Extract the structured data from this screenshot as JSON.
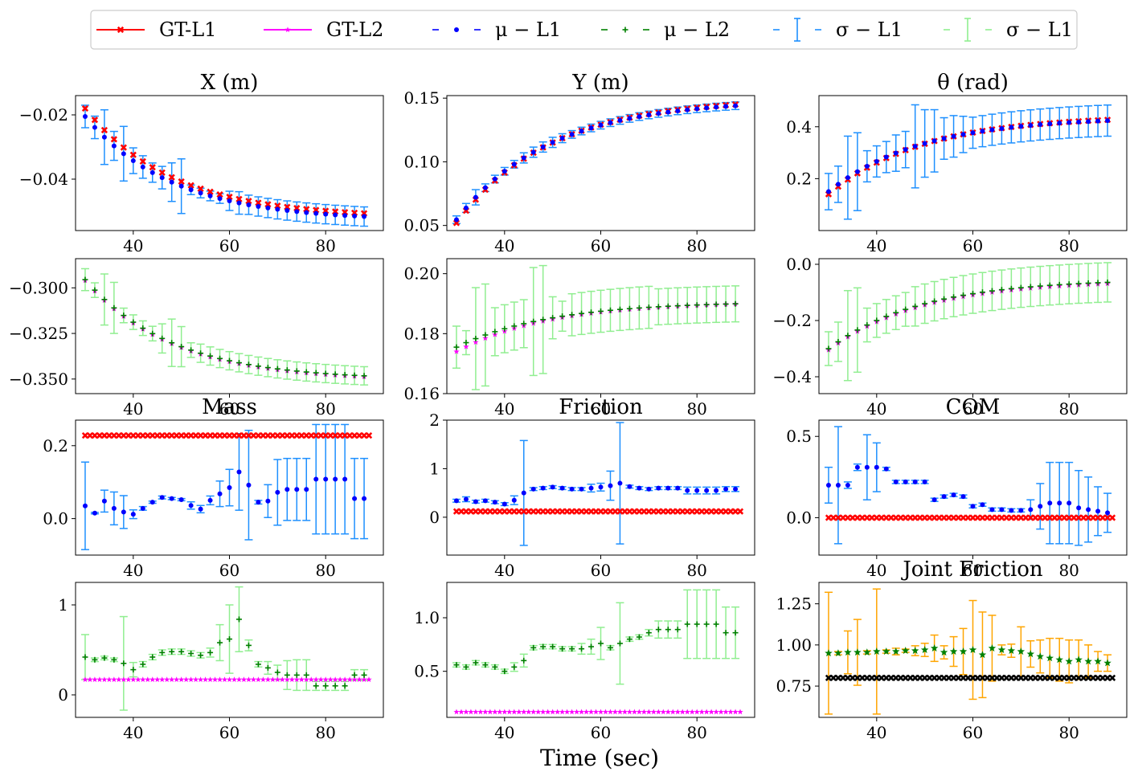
{
  "figure": {
    "xlabel": "Time (sec)"
  },
  "legend": [
    {
      "label": "GT-L1",
      "color": "#ff0000",
      "marker": "x",
      "line": "solid"
    },
    {
      "label": "GT-L2",
      "color": "#ff00ff",
      "marker": "star",
      "line": "solid"
    },
    {
      "label": "μ − L1",
      "color": "#0000ff",
      "marker": "dot",
      "line": "dashed"
    },
    {
      "label": "μ − L2",
      "color": "#008000",
      "marker": "plus",
      "line": "dashed"
    },
    {
      "label": "σ − L1",
      "color": "#1e90ff",
      "marker": "errbar",
      "line": "dashed"
    },
    {
      "label": "σ − L1",
      "color": "#90ee90",
      "marker": "errbar",
      "line": "dashed"
    }
  ],
  "colors": {
    "gt1": "#ff0000",
    "gt2": "#ff00ff",
    "mu1": "#0000ff",
    "mu2": "#008000",
    "sd1": "#1e90ff",
    "sd2": "#90ee90",
    "jf_err": "#ffa500",
    "jf_mu": "#008000",
    "jf_gt": "#000000"
  },
  "chart_data": [
    {
      "id": "x1",
      "type": "errorbar",
      "title": "X (m)",
      "xlim": [
        28,
        92
      ],
      "ylim": [
        -0.056,
        -0.014
      ],
      "xticks": [
        40,
        60,
        80
      ],
      "yticks": [
        -0.04,
        -0.02
      ],
      "ytick_labels": [
        "−0.04",
        "−0.02"
      ],
      "gt_kind": "gt1",
      "mu_kind": "mu1",
      "sd_kind": "sd1",
      "gt_start": -0.018,
      "gt_end": -0.0505,
      "gt_shape": "decay",
      "mu_start": -0.0205,
      "mu_end": -0.0515,
      "mu_shape": "decay",
      "sd": [
        0.0035,
        0.0035,
        0.0085,
        0.0045,
        0.0085,
        0.004,
        0.0035,
        0.003,
        0.0035,
        0.006,
        0.0085,
        0.0015,
        0.0015,
        0.0015,
        0.0015,
        0.003,
        0.0035,
        0.003,
        0.003,
        0.003,
        0.003,
        0.003,
        0.003,
        0.003,
        0.003,
        0.003,
        0.003,
        0.003,
        0.003,
        0.003
      ]
    },
    {
      "id": "y1",
      "type": "errorbar",
      "title": "Y (m)",
      "xlim": [
        28,
        92
      ],
      "ylim": [
        0.046,
        0.152
      ],
      "xticks": [
        40,
        60,
        80
      ],
      "yticks": [
        0.05,
        0.1,
        0.15
      ],
      "ytick_labels": [
        "0.05",
        "0.10",
        "0.15"
      ],
      "gt_kind": "gt1",
      "mu_kind": "mu1",
      "sd_kind": "sd1",
      "gt_start": 0.052,
      "gt_end": 0.1455,
      "gt_shape": "rise",
      "mu_start": 0.0545,
      "mu_end": 0.1445,
      "mu_shape": "rise",
      "sd": [
        0.003,
        0.0035,
        0.006,
        0.003,
        0.003,
        0.003,
        0.003,
        0.004,
        0.004,
        0.004,
        0.004,
        0.0035,
        0.003,
        0.003,
        0.003,
        0.003,
        0.003,
        0.003,
        0.003,
        0.003,
        0.003,
        0.003,
        0.003,
        0.003,
        0.003,
        0.003,
        0.003,
        0.003,
        0.003,
        0.003
      ]
    },
    {
      "id": "t1",
      "type": "errorbar",
      "title": "θ (rad)",
      "xlim": [
        28,
        92
      ],
      "ylim": [
        0.0,
        0.52
      ],
      "xticks": [
        40,
        60,
        80
      ],
      "yticks": [
        0.2,
        0.4
      ],
      "ytick_labels": [
        "0.2",
        "0.4"
      ],
      "gt_kind": "gt1",
      "mu_kind": "mu1",
      "sd_kind": "sd1",
      "gt_start": 0.14,
      "gt_end": 0.428,
      "gt_shape": "rise",
      "mu_start": 0.15,
      "mu_end": 0.425,
      "mu_shape": "rise",
      "sd": [
        0.07,
        0.07,
        0.16,
        0.15,
        0.06,
        0.06,
        0.06,
        0.07,
        0.07,
        0.16,
        0.13,
        0.12,
        0.08,
        0.08,
        0.07,
        0.06,
        0.06,
        0.06,
        0.06,
        0.06,
        0.06,
        0.06,
        0.06,
        0.06,
        0.06,
        0.06,
        0.06,
        0.06,
        0.06,
        0.06
      ]
    },
    {
      "id": "x2",
      "type": "errorbar",
      "title": "",
      "xlim": [
        28,
        92
      ],
      "ylim": [
        -0.358,
        -0.284
      ],
      "xticks": [
        40,
        60,
        80
      ],
      "yticks": [
        -0.35,
        -0.325,
        -0.3
      ],
      "ytick_labels": [
        "−0.350",
        "−0.325",
        "−0.300"
      ],
      "gt_kind": "gt2",
      "mu_kind": "mu2",
      "sd_kind": "sd2",
      "gt_start": -0.296,
      "gt_end": -0.3485,
      "gt_shape": "decay",
      "mu_start": -0.2955,
      "mu_end": -0.348,
      "mu_shape": "decay",
      "sd": [
        0.006,
        0.004,
        0.014,
        0.014,
        0.004,
        0.004,
        0.004,
        0.004,
        0.008,
        0.013,
        0.011,
        0.004,
        0.005,
        0.005,
        0.005,
        0.005,
        0.005,
        0.005,
        0.005,
        0.005,
        0.005,
        0.005,
        0.005,
        0.005,
        0.005,
        0.005,
        0.005,
        0.005,
        0.005,
        0.005
      ]
    },
    {
      "id": "y2",
      "type": "errorbar",
      "title": "",
      "xlim": [
        28,
        92
      ],
      "ylim": [
        0.16,
        0.205
      ],
      "xticks": [
        40,
        60,
        80
      ],
      "yticks": [
        0.16,
        0.18,
        0.2
      ],
      "ytick_labels": [
        "0.16",
        "0.18",
        "0.20"
      ],
      "gt_kind": "gt2",
      "mu_kind": "mu2",
      "sd_kind": "sd2",
      "gt_start": 0.174,
      "gt_end": 0.19,
      "gt_shape": "rise",
      "mu_start": 0.1755,
      "mu_end": 0.19,
      "mu_shape": "rise",
      "sd": [
        0.007,
        0.004,
        0.017,
        0.017,
        0.008,
        0.008,
        0.008,
        0.008,
        0.018,
        0.018,
        0.007,
        0.005,
        0.007,
        0.007,
        0.007,
        0.007,
        0.007,
        0.007,
        0.007,
        0.007,
        0.007,
        0.006,
        0.006,
        0.006,
        0.006,
        0.006,
        0.006,
        0.006,
        0.006,
        0.006
      ]
    },
    {
      "id": "t2",
      "type": "errorbar",
      "title": "",
      "xlim": [
        28,
        92
      ],
      "ylim": [
        -0.46,
        0.02
      ],
      "xticks": [
        40,
        60,
        80
      ],
      "yticks": [
        -0.4,
        -0.2,
        0.0
      ],
      "ytick_labels": [
        "−0.4",
        "−0.2",
        "0.0"
      ],
      "gt_kind": "gt2",
      "mu_kind": "mu2",
      "sd_kind": "sd2",
      "gt_start": -0.305,
      "gt_end": -0.068,
      "gt_shape": "rise",
      "mu_start": -0.3,
      "mu_end": -0.063,
      "mu_shape": "rise",
      "sd": [
        0.06,
        0.07,
        0.16,
        0.15,
        0.06,
        0.06,
        0.06,
        0.06,
        0.06,
        0.07,
        0.07,
        0.07,
        0.07,
        0.07,
        0.07,
        0.07,
        0.07,
        0.07,
        0.07,
        0.07,
        0.07,
        0.07,
        0.07,
        0.07,
        0.07,
        0.07,
        0.07,
        0.07,
        0.07,
        0.07
      ]
    },
    {
      "id": "m1",
      "type": "errorbar",
      "title": "Mass",
      "xlim": [
        28,
        92
      ],
      "ylim": [
        -0.1,
        0.27
      ],
      "xticks": [
        40,
        60,
        80
      ],
      "yticks": [
        0.0,
        0.2
      ],
      "ytick_labels": [
        "0.0",
        "0.2"
      ],
      "gt_kind": "gt1",
      "mu_kind": "mu1",
      "sd_kind": "sd1",
      "gt_const": 0.228,
      "gt_last": 89,
      "mu": [
        0.035,
        0.015,
        0.048,
        0.028,
        0.018,
        0.012,
        0.028,
        0.045,
        0.058,
        0.055,
        0.052,
        0.036,
        0.026,
        0.05,
        0.068,
        0.085,
        0.128,
        0.092,
        0.045,
        0.048,
        0.072,
        0.08,
        0.08,
        0.08,
        0.108,
        0.108,
        0.108,
        0.108,
        0.055,
        0.055
      ],
      "sd": [
        0.12,
        0.002,
        0.03,
        0.045,
        0.045,
        0.012,
        0.005,
        0.003,
        0.004,
        0.003,
        0.003,
        0.01,
        0.01,
        0.012,
        0.035,
        0.05,
        0.105,
        0.15,
        0.005,
        0.045,
        0.09,
        0.085,
        0.085,
        0.085,
        0.15,
        0.15,
        0.15,
        0.15,
        0.11,
        0.11
      ]
    },
    {
      "id": "f1",
      "type": "errorbar",
      "title": "Friction",
      "xlim": [
        28,
        92
      ],
      "ylim": [
        -0.78,
        2.0
      ],
      "xticks": [
        40,
        60,
        80
      ],
      "yticks": [
        0,
        1,
        2
      ],
      "ytick_labels": [
        "0",
        "1",
        "2"
      ],
      "gt_kind": "gt1",
      "mu_kind": "mu1",
      "sd_kind": "sd1",
      "gt_const": 0.12,
      "gt_last": 89,
      "mu": [
        0.34,
        0.37,
        0.32,
        0.34,
        0.31,
        0.27,
        0.35,
        0.5,
        0.58,
        0.6,
        0.62,
        0.6,
        0.58,
        0.58,
        0.6,
        0.62,
        0.65,
        0.7,
        0.63,
        0.6,
        0.58,
        0.6,
        0.6,
        0.6,
        0.55,
        0.55,
        0.55,
        0.55,
        0.58,
        0.58
      ],
      "sd": [
        0.03,
        0.05,
        0.03,
        0.03,
        0.03,
        0.03,
        0.09,
        1.08,
        0.03,
        0.03,
        0.03,
        0.03,
        0.03,
        0.03,
        0.08,
        0.08,
        0.3,
        1.25,
        0.03,
        0.03,
        0.03,
        0.03,
        0.03,
        0.03,
        0.07,
        0.07,
        0.07,
        0.07,
        0.05,
        0.05
      ]
    },
    {
      "id": "c1",
      "type": "errorbar",
      "title": "COM",
      "xlim": [
        28,
        92
      ],
      "ylim": [
        -0.23,
        0.6
      ],
      "xticks": [
        40,
        60,
        80
      ],
      "yticks": [
        0.0,
        0.5
      ],
      "ytick_labels": [
        "0.0",
        "0.5"
      ],
      "gt_kind": "gt1",
      "mu_kind": "mu1",
      "sd_kind": "sd1",
      "gt_const": 0.0,
      "gt_last": 89,
      "mu": [
        0.2,
        0.2,
        0.2,
        0.31,
        0.31,
        0.31,
        0.3,
        0.22,
        0.22,
        0.22,
        0.22,
        0.11,
        0.13,
        0.14,
        0.13,
        0.07,
        0.08,
        0.05,
        0.05,
        0.045,
        0.045,
        0.05,
        0.07,
        0.09,
        0.09,
        0.09,
        0.06,
        0.05,
        0.04,
        0.03
      ],
      "sd": [
        0.11,
        0.36,
        0.02,
        0.02,
        0.2,
        0.15,
        0.01,
        0.01,
        0.01,
        0.01,
        0.01,
        0.01,
        0.01,
        0.01,
        0.01,
        0.01,
        0.01,
        0.01,
        0.01,
        0.01,
        0.01,
        0.06,
        0.14,
        0.25,
        0.25,
        0.25,
        0.23,
        0.2,
        0.15,
        0.12
      ]
    },
    {
      "id": "m2",
      "type": "errorbar",
      "title": "",
      "xlim": [
        28,
        92
      ],
      "ylim": [
        -0.25,
        1.25
      ],
      "xticks": [
        40,
        60,
        80
      ],
      "yticks": [
        0,
        1
      ],
      "ytick_labels": [
        "0",
        "1"
      ],
      "gt_kind": "gt2",
      "mu_kind": "mu2",
      "sd_kind": "sd2",
      "gt_const": 0.17,
      "gt_last": 89,
      "mu": [
        0.42,
        0.39,
        0.41,
        0.39,
        0.35,
        0.28,
        0.34,
        0.42,
        0.47,
        0.48,
        0.48,
        0.46,
        0.44,
        0.47,
        0.58,
        0.62,
        0.84,
        0.55,
        0.34,
        0.3,
        0.25,
        0.22,
        0.22,
        0.22,
        0.1,
        0.1,
        0.1,
        0.1,
        0.22,
        0.22
      ],
      "sd": [
        0.25,
        0.02,
        0.02,
        0.02,
        0.52,
        0.08,
        0.03,
        0.03,
        0.03,
        0.03,
        0.03,
        0.03,
        0.03,
        0.05,
        0.2,
        0.38,
        0.36,
        0.06,
        0.03,
        0.07,
        0.08,
        0.16,
        0.17,
        0.17,
        0.05,
        0.05,
        0.05,
        0.05,
        0.06,
        0.06
      ]
    },
    {
      "id": "f2",
      "type": "errorbar",
      "title": "",
      "xlim": [
        28,
        92
      ],
      "ylim": [
        0.07,
        1.33
      ],
      "xticks": [
        40,
        60,
        80
      ],
      "yticks": [
        0.5,
        1.0
      ],
      "ytick_labels": [
        "0.5",
        "1.0"
      ],
      "gt_kind": "gt2",
      "mu_kind": "mu2",
      "sd_kind": "sd2",
      "gt_const": 0.12,
      "gt_last": 89,
      "mu": [
        0.56,
        0.54,
        0.58,
        0.56,
        0.54,
        0.5,
        0.54,
        0.6,
        0.72,
        0.73,
        0.73,
        0.71,
        0.71,
        0.71,
        0.73,
        0.76,
        0.72,
        0.76,
        0.8,
        0.82,
        0.86,
        0.89,
        0.89,
        0.89,
        0.94,
        0.94,
        0.94,
        0.94,
        0.86,
        0.86
      ],
      "sd": [
        0.02,
        0.02,
        0.02,
        0.02,
        0.02,
        0.02,
        0.04,
        0.06,
        0.02,
        0.02,
        0.02,
        0.02,
        0.02,
        0.05,
        0.07,
        0.15,
        0.02,
        0.38,
        0.02,
        0.02,
        0.03,
        0.08,
        0.08,
        0.08,
        0.32,
        0.32,
        0.32,
        0.32,
        0.24,
        0.24
      ]
    },
    {
      "id": "j1",
      "type": "errorbar",
      "title": "Joint Friction",
      "xlim": [
        28,
        92
      ],
      "ylim": [
        0.56,
        1.38
      ],
      "xticks": [
        40,
        60,
        80
      ],
      "yticks": [
        0.75,
        1.0,
        1.25
      ],
      "ytick_labels": [
        "0.75",
        "1.00",
        "1.25"
      ],
      "gt_kind": "jf_gt",
      "mu_kind": "jf_mu",
      "sd_kind": "jf_err",
      "gt_const": 0.8,
      "gt_last": 89,
      "mu": [
        0.95,
        0.95,
        0.955,
        0.955,
        0.955,
        0.96,
        0.96,
        0.96,
        0.965,
        0.965,
        0.97,
        0.98,
        0.955,
        0.96,
        0.96,
        0.97,
        0.94,
        0.98,
        0.97,
        0.965,
        0.96,
        0.945,
        0.93,
        0.92,
        0.91,
        0.9,
        0.91,
        0.9,
        0.9,
        0.89
      ],
      "sd": [
        0.37,
        0.01,
        0.13,
        0.2,
        0.01,
        0.38,
        0.01,
        0.02,
        0.01,
        0.03,
        0.04,
        0.08,
        0.04,
        0.09,
        0.14,
        0.3,
        0.26,
        0.2,
        0.03,
        0.04,
        0.15,
        0.08,
        0.1,
        0.12,
        0.13,
        0.13,
        0.12,
        0.1,
        0.06,
        0.05
      ]
    }
  ]
}
